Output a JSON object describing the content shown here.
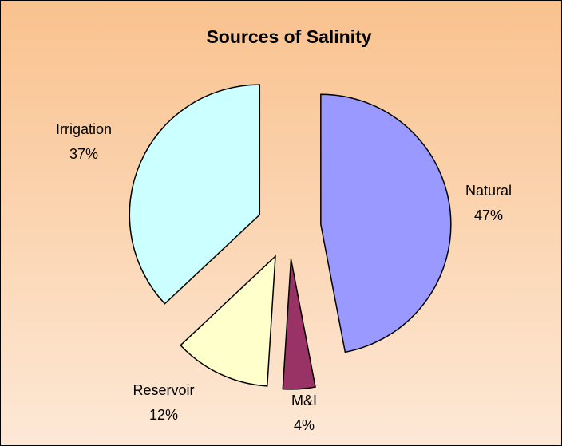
{
  "chart_data": {
    "type": "pie",
    "title": "Sources of Salinity",
    "categories": [
      "Natural",
      "M&I",
      "Reservoir",
      "Irrigation"
    ],
    "values": [
      47,
      4,
      12,
      37
    ],
    "value_labels": [
      "47%",
      "4%",
      "12%",
      "37%"
    ],
    "colors": [
      "#9999ff",
      "#993366",
      "#ffffcc",
      "#ccffff"
    ]
  }
}
